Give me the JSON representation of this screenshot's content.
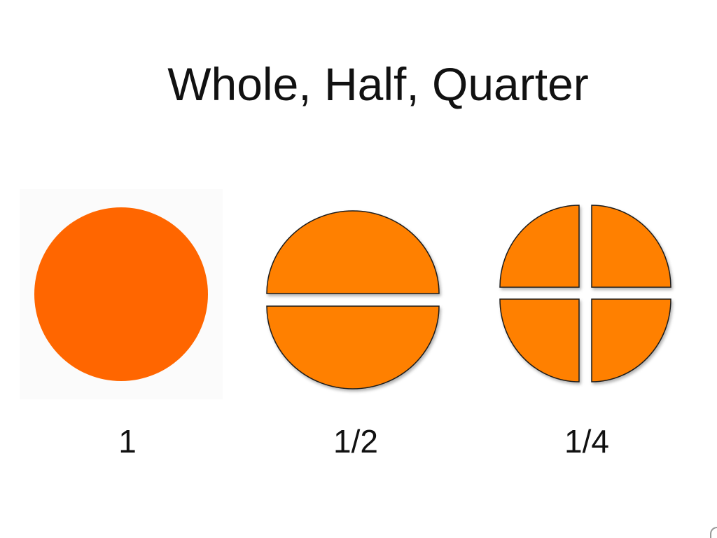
{
  "title": "Whole, Half, Quarter",
  "colors": {
    "whole_fill": "#ff6600",
    "piece_fill": "#ff8000",
    "piece_stroke": "#1a1a1a"
  },
  "figures": [
    {
      "name": "whole",
      "pieces": 1,
      "label": "1"
    },
    {
      "name": "half",
      "pieces": 2,
      "label": "1/2"
    },
    {
      "name": "quarter",
      "pieces": 4,
      "label": "1/4"
    }
  ]
}
